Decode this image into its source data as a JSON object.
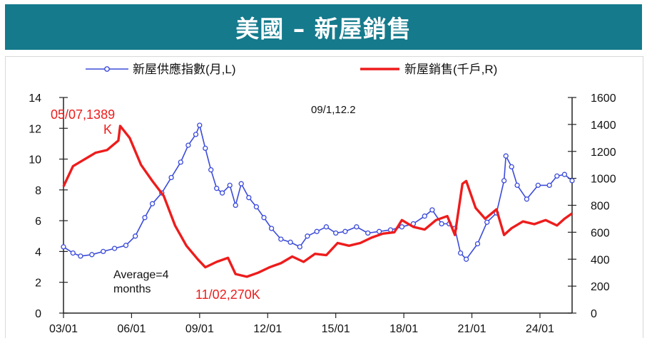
{
  "title": "美國 – 新屋銷售",
  "chart_data": {
    "type": "line",
    "legend": {
      "position": "top",
      "entries": [
        "新屋供應指數(月,L)",
        "新屋銷售(千戶,R)"
      ]
    },
    "x_ticks": [
      "03/01",
      "06/01",
      "09/01",
      "12/01",
      "15/01",
      "18/01",
      "21/01",
      "24/01"
    ],
    "x_range": [
      "2003-01",
      "2025-06"
    ],
    "y_left": {
      "ticks": [
        "0",
        "2",
        "4",
        "6",
        "8",
        "10",
        "12",
        "14"
      ],
      "range": [
        0,
        14
      ]
    },
    "y_right": {
      "ticks": [
        "0",
        "200",
        "400",
        "600",
        "800",
        "1000",
        "1200",
        "1400",
        "1600"
      ],
      "range": [
        0,
        1600
      ]
    },
    "grid": false,
    "annotations": {
      "top_center": "09/1,12.2",
      "peak_label_1": "05/07,1389",
      "peak_label_2": "K",
      "avg_line_1": "Average=4",
      "avg_line_2": "months",
      "trough_label": "11/02,270K"
    },
    "series": [
      {
        "name": "新屋供應指數(月,L)",
        "axis": "left",
        "color": "#3b4bd9",
        "marker": "circle",
        "points": [
          [
            "2003-01",
            4.3
          ],
          [
            "2003-06",
            3.9
          ],
          [
            "2003-10",
            3.7
          ],
          [
            "2004-04",
            3.8
          ],
          [
            "2004-10",
            4.0
          ],
          [
            "2005-04",
            4.2
          ],
          [
            "2005-10",
            4.4
          ],
          [
            "2006-03",
            5.0
          ],
          [
            "2006-08",
            6.2
          ],
          [
            "2006-12",
            7.1
          ],
          [
            "2007-05",
            7.8
          ],
          [
            "2007-10",
            8.8
          ],
          [
            "2008-03",
            9.8
          ],
          [
            "2008-07",
            10.9
          ],
          [
            "2008-11",
            11.6
          ],
          [
            "2009-01",
            12.2
          ],
          [
            "2009-04",
            10.7
          ],
          [
            "2009-07",
            9.3
          ],
          [
            "2009-10",
            8.1
          ],
          [
            "2010-01",
            7.8
          ],
          [
            "2010-05",
            8.3
          ],
          [
            "2010-08",
            7.0
          ],
          [
            "2010-11",
            8.4
          ],
          [
            "2011-03",
            7.5
          ],
          [
            "2011-07",
            6.9
          ],
          [
            "2011-11",
            6.2
          ],
          [
            "2012-03",
            5.5
          ],
          [
            "2012-08",
            4.8
          ],
          [
            "2013-01",
            4.6
          ],
          [
            "2013-06",
            4.3
          ],
          [
            "2013-10",
            5.0
          ],
          [
            "2014-03",
            5.3
          ],
          [
            "2014-08",
            5.6
          ],
          [
            "2015-01",
            5.2
          ],
          [
            "2015-06",
            5.3
          ],
          [
            "2015-12",
            5.6
          ],
          [
            "2016-06",
            5.2
          ],
          [
            "2016-12",
            5.3
          ],
          [
            "2017-06",
            5.4
          ],
          [
            "2017-12",
            5.6
          ],
          [
            "2018-06",
            5.8
          ],
          [
            "2018-12",
            6.3
          ],
          [
            "2019-04",
            6.7
          ],
          [
            "2019-09",
            5.8
          ],
          [
            "2020-01",
            5.8
          ],
          [
            "2020-04",
            5.5
          ],
          [
            "2020-07",
            3.9
          ],
          [
            "2020-10",
            3.5
          ],
          [
            "2021-04",
            4.5
          ],
          [
            "2021-09",
            5.9
          ],
          [
            "2022-02",
            6.5
          ],
          [
            "2022-06",
            8.6
          ],
          [
            "2022-07",
            10.2
          ],
          [
            "2022-10",
            9.5
          ],
          [
            "2023-01",
            8.3
          ],
          [
            "2023-06",
            7.4
          ],
          [
            "2023-12",
            8.3
          ],
          [
            "2024-06",
            8.3
          ],
          [
            "2024-10",
            8.9
          ],
          [
            "2025-02",
            9.0
          ],
          [
            "2025-06",
            8.6
          ]
        ]
      },
      {
        "name": "新屋銷售(千戶,R)",
        "axis": "right",
        "color": "#ee1c1c",
        "points": [
          [
            "2003-01",
            940
          ],
          [
            "2003-06",
            1090
          ],
          [
            "2003-12",
            1140
          ],
          [
            "2004-06",
            1190
          ],
          [
            "2004-12",
            1210
          ],
          [
            "2005-06",
            1280
          ],
          [
            "2005-07",
            1389
          ],
          [
            "2005-12",
            1300
          ],
          [
            "2006-06",
            1100
          ],
          [
            "2006-12",
            980
          ],
          [
            "2007-06",
            870
          ],
          [
            "2007-12",
            650
          ],
          [
            "2008-06",
            500
          ],
          [
            "2008-12",
            400
          ],
          [
            "2009-04",
            340
          ],
          [
            "2009-10",
            380
          ],
          [
            "2010-04",
            410
          ],
          [
            "2010-08",
            290
          ],
          [
            "2011-02",
            270
          ],
          [
            "2011-08",
            300
          ],
          [
            "2012-02",
            340
          ],
          [
            "2012-08",
            370
          ],
          [
            "2013-02",
            420
          ],
          [
            "2013-08",
            380
          ],
          [
            "2014-02",
            440
          ],
          [
            "2014-08",
            430
          ],
          [
            "2015-02",
            520
          ],
          [
            "2015-08",
            500
          ],
          [
            "2016-02",
            520
          ],
          [
            "2016-08",
            560
          ],
          [
            "2017-02",
            590
          ],
          [
            "2017-08",
            600
          ],
          [
            "2017-12",
            690
          ],
          [
            "2018-06",
            640
          ],
          [
            "2018-12",
            620
          ],
          [
            "2019-06",
            690
          ],
          [
            "2019-12",
            720
          ],
          [
            "2020-04",
            580
          ],
          [
            "2020-08",
            960
          ],
          [
            "2020-10",
            980
          ],
          [
            "2021-03",
            780
          ],
          [
            "2021-08",
            700
          ],
          [
            "2022-02",
            770
          ],
          [
            "2022-06",
            580
          ],
          [
            "2022-10",
            630
          ],
          [
            "2023-04",
            680
          ],
          [
            "2023-10",
            660
          ],
          [
            "2024-04",
            690
          ],
          [
            "2024-10",
            650
          ],
          [
            "2025-02",
            700
          ],
          [
            "2025-06",
            740
          ]
        ]
      }
    ]
  }
}
